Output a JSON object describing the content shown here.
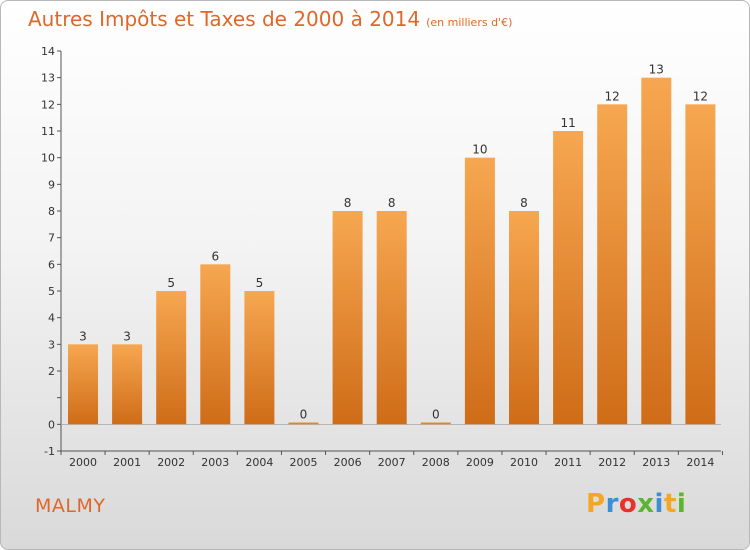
{
  "title": "Autres Impôts et Taxes de 2000 à 2014",
  "title_unit": "(en milliers d'€)",
  "commune": "MALMY",
  "logo": {
    "letters": [
      "P",
      "r",
      "o",
      "x",
      "i",
      "t",
      "i"
    ],
    "colors": [
      "#f5a623",
      "#3a8fd6",
      "#e6332a",
      "#5cb531",
      "#3a8fd6",
      "#f5a623",
      "#5cb531"
    ]
  },
  "colors": {
    "accent": "#e0672a",
    "bar_top": "#f7a751",
    "bar_bottom": "#cf6c18"
  },
  "chart_data": {
    "type": "bar",
    "categories": [
      "2000",
      "2001",
      "2002",
      "2003",
      "2004",
      "2005",
      "2006",
      "2007",
      "2008",
      "2009",
      "2010",
      "2011",
      "2012",
      "2013",
      "2014"
    ],
    "values": [
      3,
      3,
      5,
      6,
      5,
      0,
      8,
      8,
      0,
      10,
      8,
      11,
      12,
      13,
      12
    ],
    "title": "Autres Impôts et Taxes de 2000 à 2014",
    "ylim": [
      -1,
      14
    ],
    "yticks": [
      "-1",
      "0",
      "",
      "2",
      "3",
      "4",
      "5",
      "6",
      "7",
      "8",
      "9",
      "10",
      "11",
      "12",
      "13",
      "14"
    ],
    "grid": false
  }
}
